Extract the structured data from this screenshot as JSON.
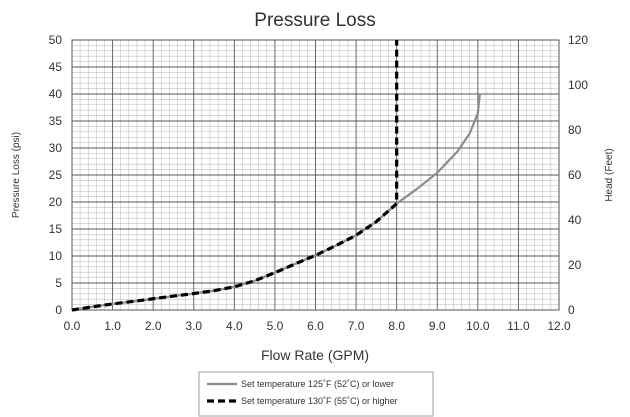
{
  "chart_data": {
    "type": "line",
    "title": "Pressure Loss",
    "xlabel": "Flow Rate (GPM)",
    "ylabel": "Pressure Loss (psi)",
    "y2label": "Head (Feet)",
    "xlim": [
      0,
      12
    ],
    "ylim": [
      0,
      50
    ],
    "y2lim": [
      0,
      120
    ],
    "x_ticks": [
      "0.0",
      "1.0",
      "2.0",
      "3.0",
      "4.0",
      "5.0",
      "6.0",
      "7.0",
      "8.0",
      "9.0",
      "10.0",
      "11.0",
      "12.0"
    ],
    "y_ticks": [
      "0",
      "5",
      "10",
      "15",
      "20",
      "25",
      "30",
      "35",
      "40",
      "45",
      "50"
    ],
    "y2_ticks": [
      "0",
      "20",
      "40",
      "60",
      "80",
      "100",
      "120"
    ],
    "grid": true,
    "legend_position": "bottom-center",
    "series": [
      {
        "name": "Set temperature 125˚F (52˚C) or lower",
        "style": "solid",
        "color": "#8c8c8c",
        "x": [
          0,
          0.5,
          1,
          1.5,
          2,
          2.5,
          3,
          3.5,
          4,
          4.5,
          5,
          5.5,
          6,
          6.5,
          7,
          7.5,
          8,
          8.5,
          9,
          9.5,
          9.8,
          10,
          10.05
        ],
        "y": [
          0,
          1.4,
          2.7,
          3.8,
          5,
          6.2,
          7.3,
          8.6,
          10.3,
          13,
          16.6,
          20.5,
          24.3,
          28.6,
          33.2,
          39.3,
          47.3,
          53.8,
          61,
          70.5,
          78.5,
          87.5,
          96
        ]
      },
      {
        "name": "Set temperature 130˚F (55˚C) or higher",
        "style": "dashed",
        "color": "#000000",
        "x": [
          0,
          0.5,
          1,
          1.5,
          2,
          2.5,
          3,
          3.5,
          4,
          4.5,
          5,
          5.5,
          6,
          6.5,
          7,
          7.5,
          8,
          8,
          8
        ],
        "y": [
          0,
          1.4,
          2.7,
          3.8,
          5,
          6.2,
          7.3,
          8.6,
          10.3,
          13,
          16.6,
          20.5,
          24.3,
          28.6,
          33.2,
          39.3,
          47.3,
          80,
          120
        ]
      }
    ]
  }
}
